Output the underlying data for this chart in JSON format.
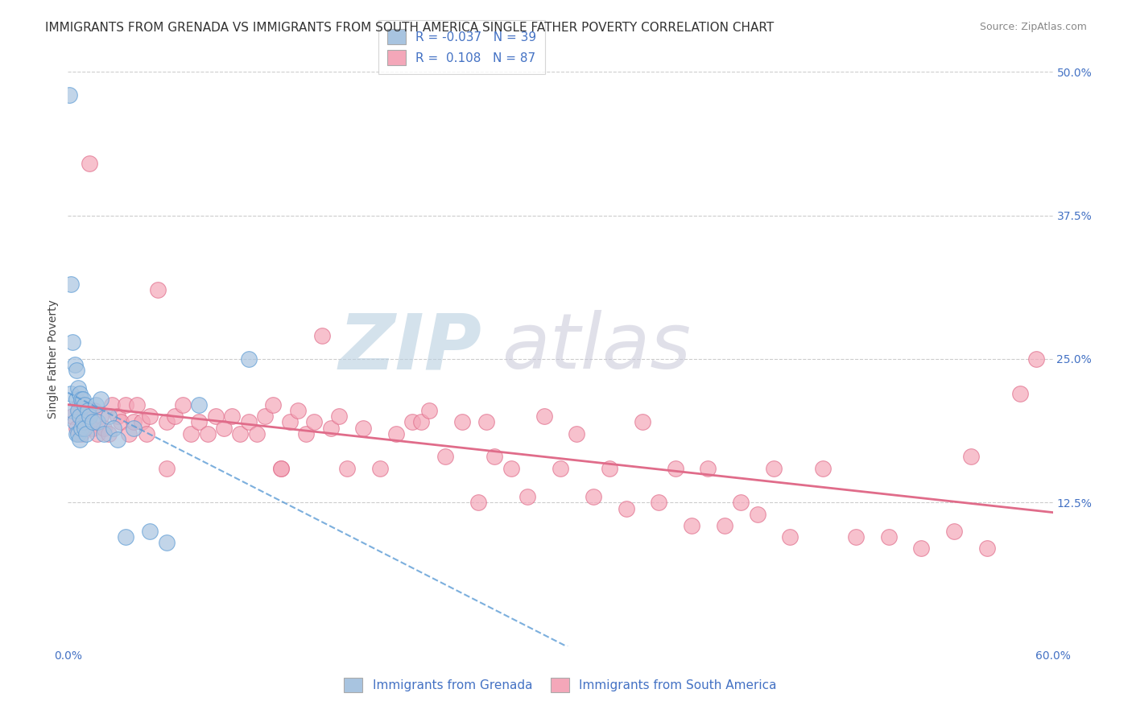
{
  "title": "IMMIGRANTS FROM GRENADA VS IMMIGRANTS FROM SOUTH AMERICA SINGLE FATHER POVERTY CORRELATION CHART",
  "source": "Source: ZipAtlas.com",
  "xlabel_grenada": "Immigrants from Grenada",
  "xlabel_south_america": "Immigrants from South America",
  "ylabel": "Single Father Poverty",
  "xmin": 0.0,
  "xmax": 0.6,
  "ymin": 0.0,
  "ymax": 0.5,
  "yticks": [
    0.0,
    0.125,
    0.25,
    0.375,
    0.5
  ],
  "ytick_labels": [
    "",
    "12.5%",
    "25.0%",
    "37.5%",
    "50.0%"
  ],
  "xticks": [
    0.0,
    0.6
  ],
  "xtick_labels": [
    "0.0%",
    "60.0%"
  ],
  "R_grenada": -0.037,
  "N_grenada": 39,
  "R_south_america": 0.108,
  "N_south_america": 87,
  "color_grenada": "#a8c4e0",
  "color_south_america": "#f4a7b9",
  "line_color_grenada": "#5b9bd5",
  "line_color_south_america": "#e06c8a",
  "background_color": "#ffffff",
  "grid_color": "#cccccc",
  "watermark": "ZIPatlas",
  "watermark_color_zip": "#b8cfe0",
  "watermark_color_atlas": "#c8c8d8",
  "title_fontsize": 11,
  "axis_label_fontsize": 10,
  "tick_fontsize": 10,
  "legend_fontsize": 11,
  "grenada_x": [
    0.001,
    0.002,
    0.002,
    0.003,
    0.003,
    0.004,
    0.004,
    0.005,
    0.005,
    0.005,
    0.006,
    0.006,
    0.006,
    0.007,
    0.007,
    0.007,
    0.008,
    0.008,
    0.009,
    0.009,
    0.01,
    0.01,
    0.011,
    0.012,
    0.013,
    0.015,
    0.017,
    0.018,
    0.02,
    0.022,
    0.025,
    0.028,
    0.03,
    0.035,
    0.04,
    0.05,
    0.06,
    0.08,
    0.11
  ],
  "grenada_y": [
    0.48,
    0.315,
    0.22,
    0.265,
    0.205,
    0.245,
    0.195,
    0.24,
    0.215,
    0.185,
    0.225,
    0.205,
    0.185,
    0.22,
    0.2,
    0.18,
    0.215,
    0.19,
    0.215,
    0.195,
    0.21,
    0.19,
    0.185,
    0.205,
    0.2,
    0.195,
    0.21,
    0.195,
    0.215,
    0.185,
    0.2,
    0.19,
    0.18,
    0.095,
    0.19,
    0.1,
    0.09,
    0.21,
    0.25
  ],
  "south_america_x": [
    0.003,
    0.005,
    0.007,
    0.008,
    0.01,
    0.012,
    0.013,
    0.015,
    0.016,
    0.018,
    0.02,
    0.022,
    0.025,
    0.027,
    0.03,
    0.032,
    0.035,
    0.037,
    0.04,
    0.042,
    0.045,
    0.048,
    0.05,
    0.055,
    0.06,
    0.065,
    0.07,
    0.075,
    0.08,
    0.085,
    0.09,
    0.095,
    0.1,
    0.105,
    0.11,
    0.115,
    0.12,
    0.125,
    0.13,
    0.135,
    0.14,
    0.145,
    0.15,
    0.155,
    0.16,
    0.165,
    0.17,
    0.18,
    0.19,
    0.2,
    0.21,
    0.215,
    0.22,
    0.23,
    0.24,
    0.25,
    0.255,
    0.26,
    0.27,
    0.28,
    0.29,
    0.3,
    0.31,
    0.32,
    0.33,
    0.34,
    0.35,
    0.36,
    0.37,
    0.38,
    0.39,
    0.4,
    0.41,
    0.42,
    0.43,
    0.44,
    0.46,
    0.48,
    0.5,
    0.52,
    0.54,
    0.55,
    0.56,
    0.58,
    0.59,
    0.06,
    0.13
  ],
  "south_america_y": [
    0.2,
    0.19,
    0.21,
    0.185,
    0.2,
    0.195,
    0.42,
    0.19,
    0.205,
    0.185,
    0.2,
    0.19,
    0.185,
    0.21,
    0.2,
    0.195,
    0.21,
    0.185,
    0.195,
    0.21,
    0.195,
    0.185,
    0.2,
    0.31,
    0.195,
    0.2,
    0.21,
    0.185,
    0.195,
    0.185,
    0.2,
    0.19,
    0.2,
    0.185,
    0.195,
    0.185,
    0.2,
    0.21,
    0.155,
    0.195,
    0.205,
    0.185,
    0.195,
    0.27,
    0.19,
    0.2,
    0.155,
    0.19,
    0.155,
    0.185,
    0.195,
    0.195,
    0.205,
    0.165,
    0.195,
    0.125,
    0.195,
    0.165,
    0.155,
    0.13,
    0.2,
    0.155,
    0.185,
    0.13,
    0.155,
    0.12,
    0.195,
    0.125,
    0.155,
    0.105,
    0.155,
    0.105,
    0.125,
    0.115,
    0.155,
    0.095,
    0.155,
    0.095,
    0.095,
    0.085,
    0.1,
    0.165,
    0.085,
    0.22,
    0.25,
    0.155,
    0.155
  ]
}
